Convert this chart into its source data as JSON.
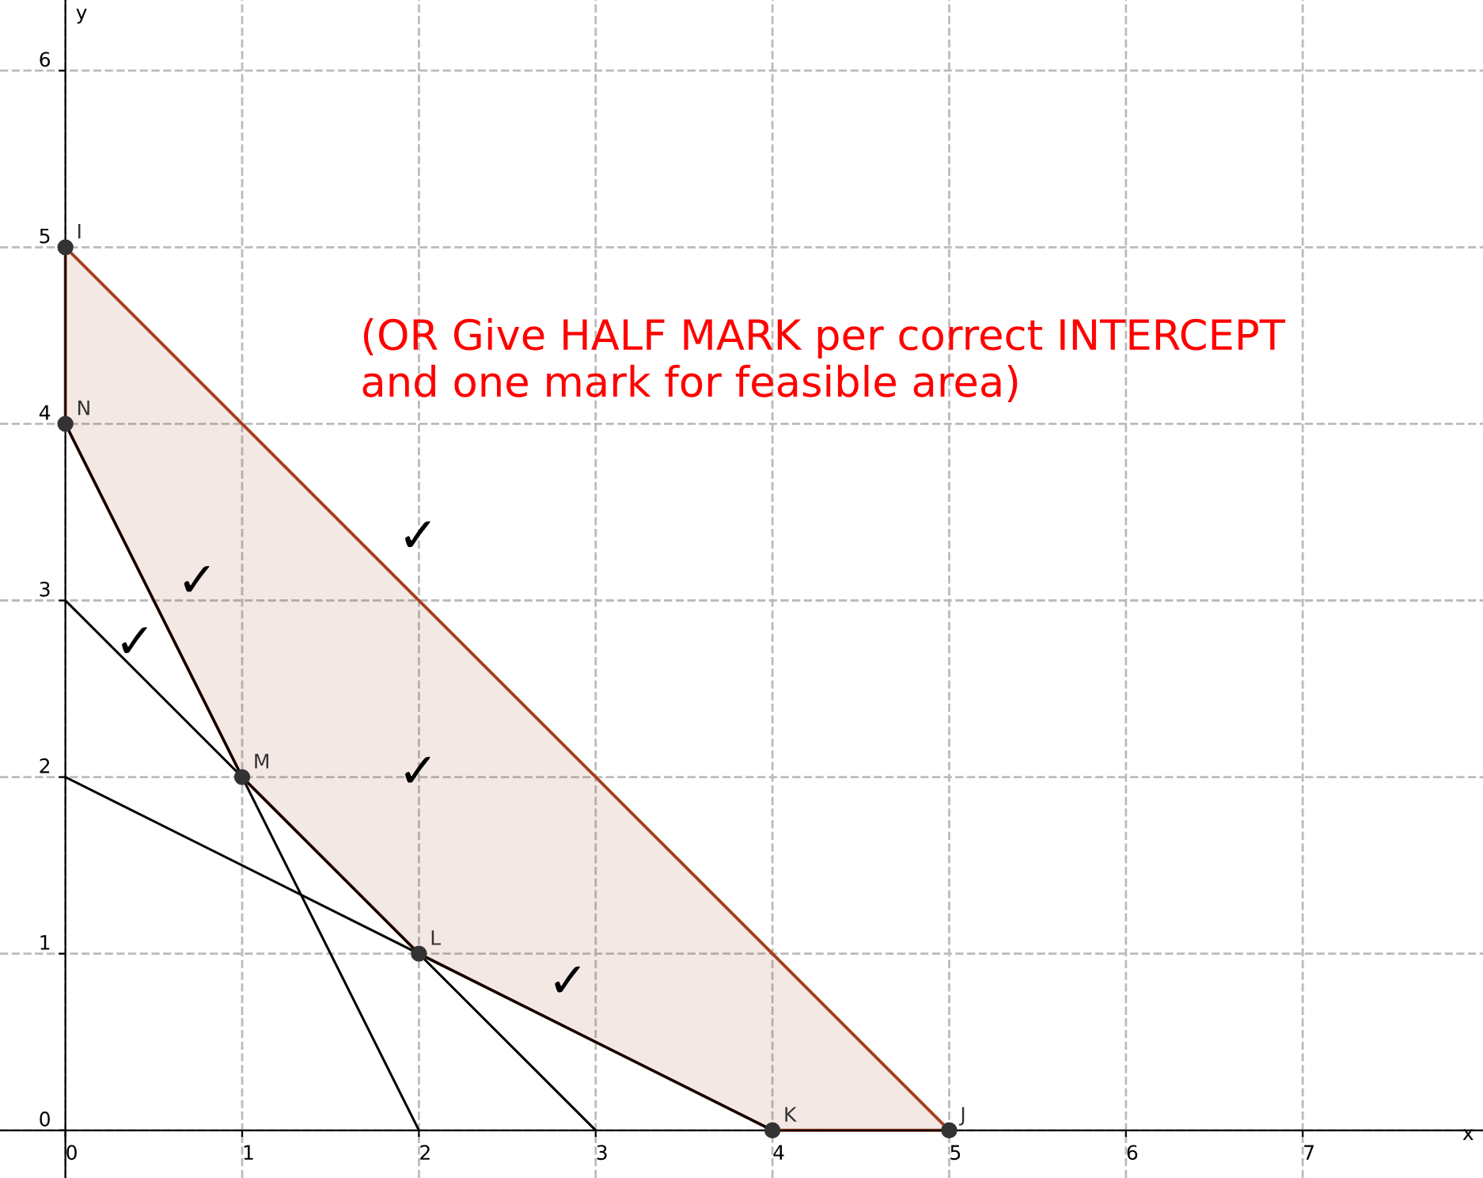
{
  "chart_data": {
    "type": "line",
    "xlabel": "x",
    "ylabel": "y",
    "xlim": [
      -0.37,
      8.02
    ],
    "ylim": [
      -0.27,
      6.4
    ],
    "xticks": [
      0,
      1,
      2,
      3,
      4,
      5,
      6,
      7
    ],
    "yticks": [
      0,
      1,
      2,
      3,
      4,
      5,
      6
    ],
    "grid": true,
    "legend": false,
    "series": [
      {
        "type": "line",
        "color": "#a5401f",
        "x": [
          0,
          1,
          2,
          4,
          5
        ],
        "values": [
          5,
          4,
          3,
          1,
          0
        ],
        "lower": [
          4,
          2,
          1,
          0,
          0
        ],
        "upper": [
          5,
          4,
          3,
          1,
          0
        ]
      },
      {
        "type": "line",
        "color": "#000000",
        "x": [
          0,
          3
        ],
        "values": [
          3,
          0
        ]
      },
      {
        "type": "line",
        "color": "#000000",
        "x": [
          0,
          4
        ],
        "values": [
          2,
          0
        ]
      },
      {
        "color": "#000000",
        "x": [
          0,
          2
        ],
        "values": [
          4,
          0
        ]
      },
      {
        "type": "scatter",
        "color": "#333333",
        "marker": "circle",
        "x": [
          0,
          0,
          1,
          2,
          4,
          5
        ],
        "values": [
          5,
          4,
          2,
          1,
          0,
          0
        ]
      }
    ],
    "annotations": [
      {
        "text": "I",
        "x": 0,
        "y": 5
      },
      {
        "text": "N",
        "x": 0,
        "y": 4
      },
      {
        "text": "M",
        "x": 1,
        "y": 2
      },
      {
        "text": "L",
        "x": 2,
        "y": 1
      },
      {
        "text": "K",
        "x": 4,
        "y": 0
      },
      {
        "text": "J",
        "x": 5,
        "y": 0
      },
      "(OR Give HALF MARK per correct INTERCEPT\nand one mark for feasible area)",
      "✓",
      "✓",
      "✓",
      "✓",
      "✓"
    ]
  }
}
